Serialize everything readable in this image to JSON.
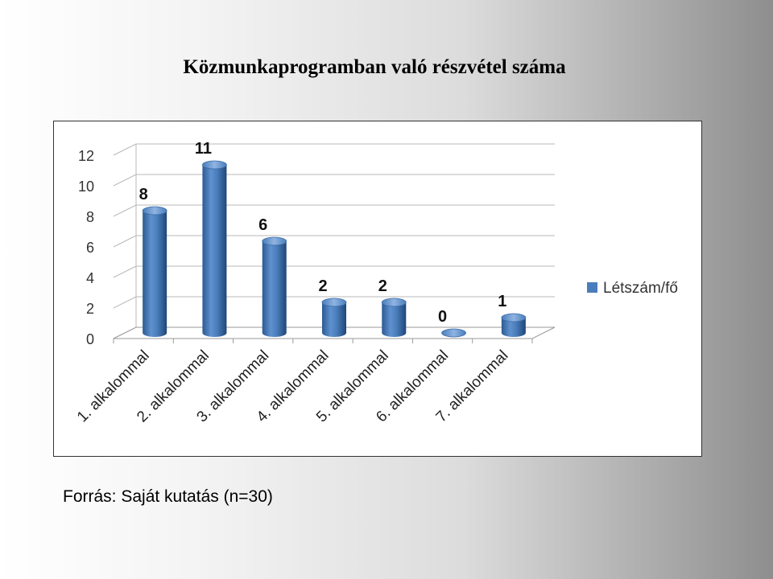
{
  "slide": {
    "title": "Közmunkaprogramban való részvétel száma",
    "source": "Forrás: Saját kutatás (n=30)"
  },
  "chart_data": {
    "type": "bar",
    "style": "3d-cylinder",
    "categories": [
      "1. alkalommal",
      "2. alkalommal",
      "3. alkalommal",
      "4. alkalommal",
      "5. alkalommal",
      "6. alkalommal",
      "7. alkalommal"
    ],
    "series": [
      {
        "name": "Létszám/fő",
        "values": [
          8,
          11,
          6,
          2,
          2,
          0,
          1
        ],
        "color": "#4a7ebb"
      }
    ],
    "yticks": [
      0,
      2,
      4,
      6,
      8,
      10,
      12
    ],
    "ylim": [
      0,
      12
    ],
    "grid": true,
    "data_labels": true,
    "legend": "right"
  }
}
